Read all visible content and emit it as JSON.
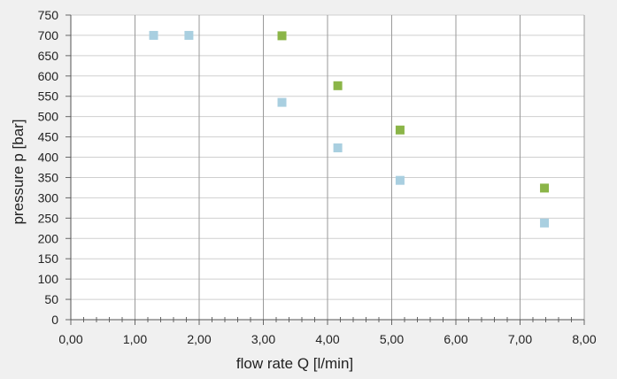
{
  "chart_data": {
    "type": "scatter",
    "title": "",
    "xlabel": "flow rate Q [l/min]",
    "ylabel": "pressure p [bar]",
    "xlim": [
      0,
      8
    ],
    "ylim": [
      0,
      750
    ],
    "x_ticks": [
      0,
      1,
      2,
      3,
      4,
      5,
      6,
      7,
      8
    ],
    "x_tick_labels": [
      "0,00",
      "1,00",
      "2,00",
      "3,00",
      "4,00",
      "5,00",
      "6,00",
      "7,00",
      "8,00"
    ],
    "y_ticks": [
      0,
      50,
      100,
      150,
      200,
      250,
      300,
      350,
      400,
      450,
      500,
      550,
      600,
      650,
      700,
      750
    ],
    "y_tick_labels": [
      "0",
      "50",
      "100",
      "150",
      "200",
      "250",
      "300",
      "350",
      "400",
      "450",
      "500",
      "550",
      "600",
      "650",
      "700",
      "750"
    ],
    "grid": {
      "vertical_major": true,
      "horizontal_major": true,
      "x_minor_ticks": 5
    },
    "legend": "none",
    "series": [
      {
        "color": "#a9cfe0",
        "points": [
          {
            "x": 1.29,
            "y": 700
          },
          {
            "x": 1.84,
            "y": 700
          },
          {
            "x": 3.29,
            "y": 535
          },
          {
            "x": 4.16,
            "y": 423
          },
          {
            "x": 5.13,
            "y": 343
          },
          {
            "x": 7.38,
            "y": 238
          }
        ]
      },
      {
        "color": "#8bb548",
        "points": [
          {
            "x": 3.29,
            "y": 699
          },
          {
            "x": 4.16,
            "y": 576
          },
          {
            "x": 5.13,
            "y": 467
          },
          {
            "x": 7.38,
            "y": 324
          }
        ]
      }
    ]
  }
}
